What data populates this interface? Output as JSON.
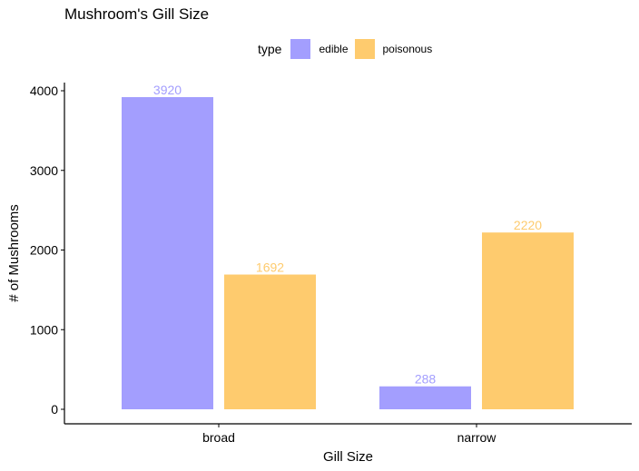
{
  "chart_data": {
    "type": "bar",
    "title": "Mushroom's Gill Size",
    "xlabel": "Gill Size",
    "ylabel": "# of Mushrooms",
    "categories": [
      "broad",
      "narrow"
    ],
    "series": [
      {
        "name": "edible",
        "values": [
          3920,
          288
        ],
        "color": "#a39efe"
      },
      {
        "name": "poisonous",
        "values": [
          1692,
          2220
        ],
        "color": "#fecb6e"
      }
    ],
    "yticks": [
      0,
      1000,
      2000,
      3000,
      4000
    ],
    "ylim": [
      -200,
      4116
    ],
    "legend": {
      "title": "type",
      "position": "top"
    },
    "grid": false
  }
}
